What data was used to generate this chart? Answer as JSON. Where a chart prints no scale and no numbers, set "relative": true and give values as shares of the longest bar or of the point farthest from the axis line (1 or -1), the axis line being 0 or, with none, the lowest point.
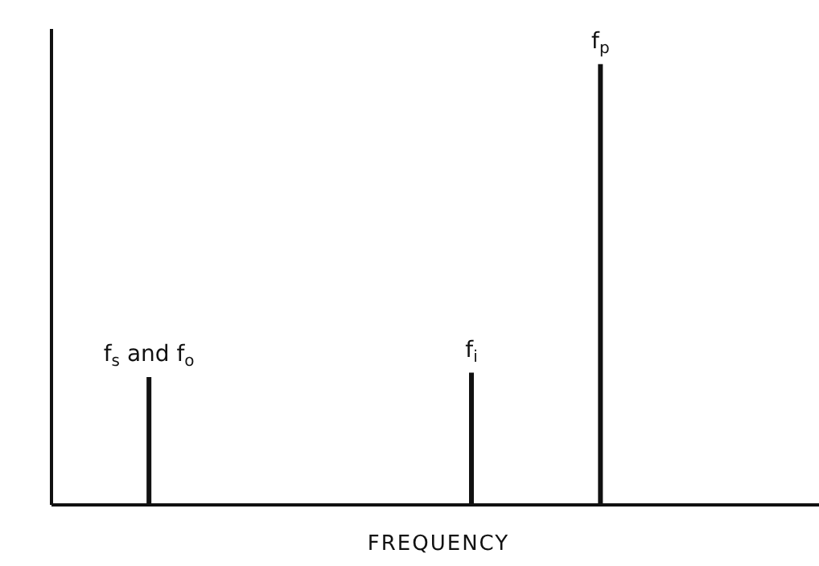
{
  "chart_data": {
    "type": "bar",
    "xlabel": "FREQUENCY",
    "relative": true,
    "color": "#111111",
    "categories": [
      null,
      "f$_{s}$ and f$_{o}$",
      null,
      null,
      null,
      null,
      "f$_{i}$",
      null,
      "f$_{p}$",
      null,
      null,
      null
    ],
    "values": [
      null,
      0.29,
      null,
      null,
      null,
      null,
      0.3,
      null,
      1,
      null,
      null,
      null
    ]
  }
}
